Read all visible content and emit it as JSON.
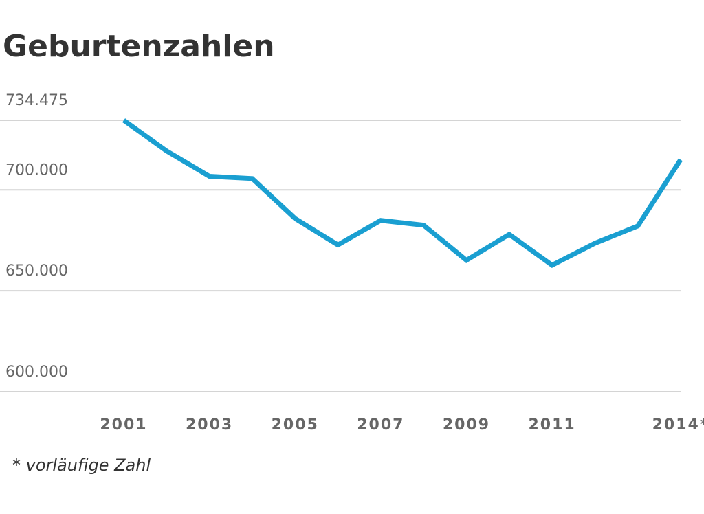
{
  "chart_data": {
    "type": "line",
    "title": "Geburtenzahlen",
    "categories": [
      "2001",
      null,
      "2003",
      null,
      "2005",
      null,
      "2007",
      null,
      "2009",
      null,
      "2011",
      null,
      null,
      "2014*"
    ],
    "series": [
      {
        "name": "Geburten",
        "color": "#1a9fd1",
        "values": [
          734475,
          719250,
          706721,
          705622,
          685795,
          672724,
          684862,
          682514,
          665126,
          677947,
          662685,
          673544,
          682069,
          714927
        ]
      }
    ],
    "ylim": [
      600000,
      734475
    ],
    "yticks": [
      {
        "value": 600000,
        "label": "600.000"
      },
      {
        "value": 650000,
        "label": "650.000"
      },
      {
        "value": 700000,
        "label": "700.000"
      },
      {
        "value": 734475,
        "label": "734.475"
      }
    ],
    "grid": true,
    "note": "* vorläufige Zahl"
  }
}
